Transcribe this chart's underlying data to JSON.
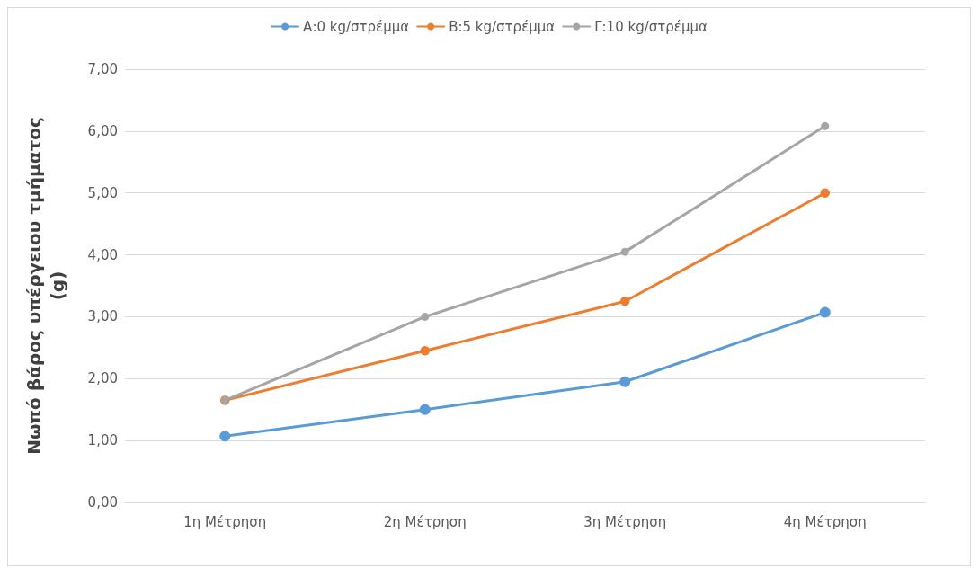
{
  "chart_data": {
    "type": "line",
    "ylabel": "Νωπό βάρος υπέργειου τμήματος (g)",
    "categories": [
      "1η Μέτρηση",
      "2η Μέτρηση",
      "3η Μέτρηση",
      "4η Μέτρηση"
    ],
    "series": [
      {
        "name": "Α:0 kg/στρέμμα",
        "color": "#5b9bd5",
        "values": [
          1.07,
          1.5,
          1.95,
          3.07
        ]
      },
      {
        "name": "Β:5 kg/στρέμμα",
        "color": "#ed7d31",
        "values": [
          1.65,
          2.45,
          3.25,
          5.0
        ]
      },
      {
        "name": "Γ:10 kg/στρέμμα",
        "color": "#a5a5a5",
        "values": [
          1.65,
          3.0,
          4.05,
          6.08
        ]
      }
    ],
    "ylim": [
      0,
      7
    ],
    "yticks": [
      {
        "value": 0,
        "label": "0,00"
      },
      {
        "value": 1,
        "label": "1,00"
      },
      {
        "value": 2,
        "label": "2,00"
      },
      {
        "value": 3,
        "label": "3,00"
      },
      {
        "value": 4,
        "label": "4,00"
      },
      {
        "value": 5,
        "label": "5,00"
      },
      {
        "value": 6,
        "label": "6,00"
      },
      {
        "value": 7,
        "label": "7,00"
      }
    ],
    "grid": "y",
    "legend": "top",
    "marker": "circle",
    "line_style": "solid"
  }
}
